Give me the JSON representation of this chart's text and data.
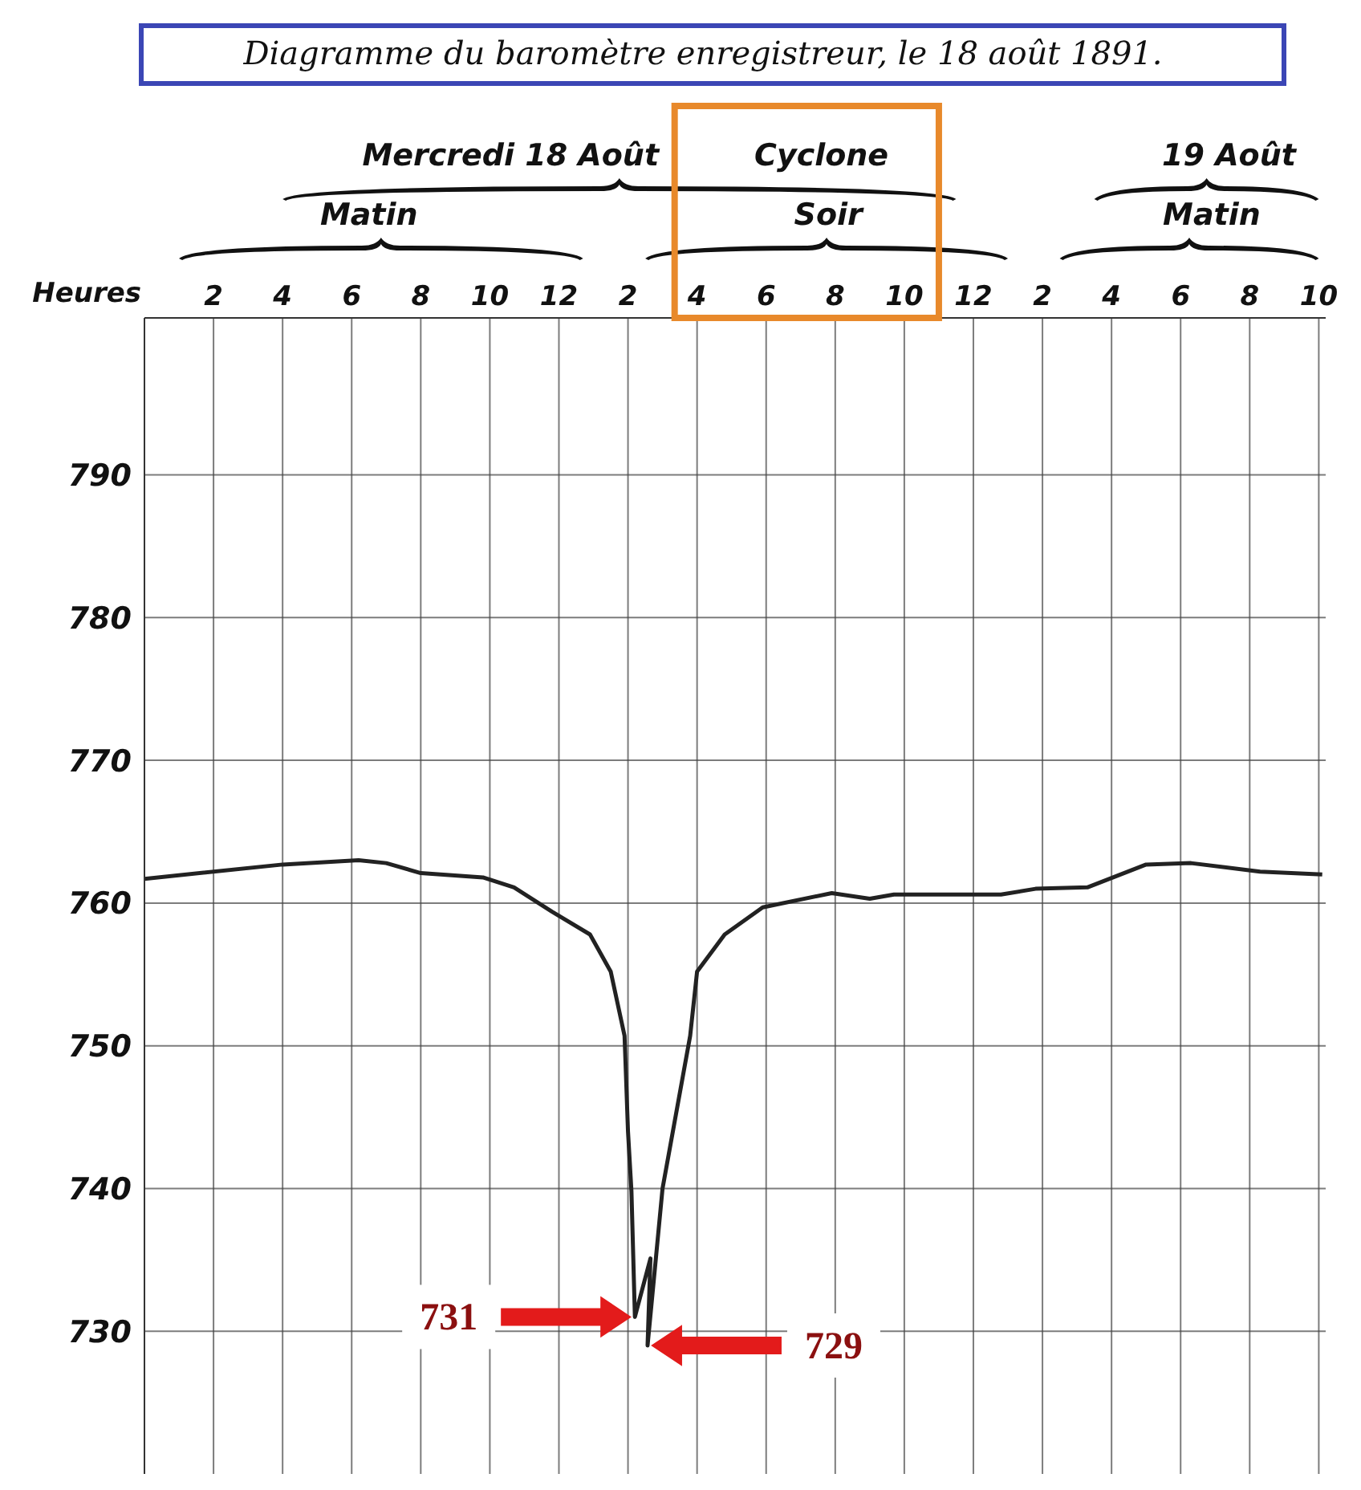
{
  "chart_data": {
    "type": "line",
    "title": "Diagramme du baromètre enregistreur, le 18 août 1891.",
    "xlabel": "Heures",
    "annotations": [
      "Mercredi 18 Août",
      "Cyclone",
      "Matin",
      "Soir",
      "19 Août",
      "Matin",
      "731",
      "729"
    ],
    "x": [
      "1891-08-18T00:00",
      "1891-08-18T04:00",
      "1891-08-18T06:12",
      "1891-08-18T07:00",
      "1891-08-18T08:00",
      "1891-08-18T09:48",
      "1891-08-18T10:42",
      "1891-08-18T11:48",
      "1891-08-18T12:54",
      "1891-08-18T13:30",
      "1891-08-18T13:54",
      "1891-08-18T14:00",
      "1891-08-18T14:06",
      "1891-08-18T14:12",
      "1891-08-18T14:39",
      "1891-08-18T14:34",
      "1891-08-18T15:00",
      "1891-08-18T15:48",
      "1891-08-18T16:00",
      "1891-08-18T16:48",
      "1891-08-18T17:54",
      "1891-08-18T19:54",
      "1891-08-18T21:00",
      "1891-08-18T21:42",
      "1891-08-19T00:48",
      "1891-08-19T01:48",
      "1891-08-19T03:18",
      "1891-08-19T05:00",
      "1891-08-19T06:18",
      "1891-08-19T08:18",
      "1891-08-19T10:06"
    ],
    "values": [
      761.7,
      762.7,
      763.0,
      762.8,
      762.1,
      761.8,
      761.1,
      759.4,
      757.8,
      755.2,
      750.7,
      744,
      739.8,
      731,
      735.1,
      729,
      740,
      750.7,
      755.2,
      757.8,
      759.7,
      760.7,
      760.3,
      760.6,
      760.6,
      761.0,
      761.1,
      762.7,
      762.8,
      762.2,
      762.0
    ],
    "color": "#222222",
    "marker": "none",
    "line_style": "solid",
    "xlim": [
      "1891-08-18T00:00",
      "1891-08-19T10:12"
    ],
    "ylim": [
      720,
      801
    ],
    "xticks": [
      {
        "value": "1891-08-18T02:00",
        "label": "2"
      },
      {
        "value": "1891-08-18T04:00",
        "label": "4"
      },
      {
        "value": "1891-08-18T06:00",
        "label": "6"
      },
      {
        "value": "1891-08-18T08:00",
        "label": "8"
      },
      {
        "value": "1891-08-18T10:00",
        "label": "10"
      },
      {
        "value": "1891-08-18T12:00",
        "label": "12"
      },
      {
        "value": "1891-08-18T14:00",
        "label": "2"
      },
      {
        "value": "1891-08-18T16:00",
        "label": "4"
      },
      {
        "value": "1891-08-18T18:00",
        "label": "6"
      },
      {
        "value": "1891-08-18T20:00",
        "label": "8"
      },
      {
        "value": "1891-08-18T22:00",
        "label": "10"
      },
      {
        "value": "1891-08-19T00:00",
        "label": "12"
      },
      {
        "value": "1891-08-19T02:00",
        "label": "2"
      },
      {
        "value": "1891-08-19T04:00",
        "label": "4"
      },
      {
        "value": "1891-08-19T06:00",
        "label": "6"
      },
      {
        "value": "1891-08-19T08:00",
        "label": "8"
      },
      {
        "value": "1891-08-19T10:00",
        "label": "10"
      }
    ],
    "yticks": [
      730,
      740,
      750,
      760,
      770,
      780,
      790
    ],
    "grid": true
  }
}
